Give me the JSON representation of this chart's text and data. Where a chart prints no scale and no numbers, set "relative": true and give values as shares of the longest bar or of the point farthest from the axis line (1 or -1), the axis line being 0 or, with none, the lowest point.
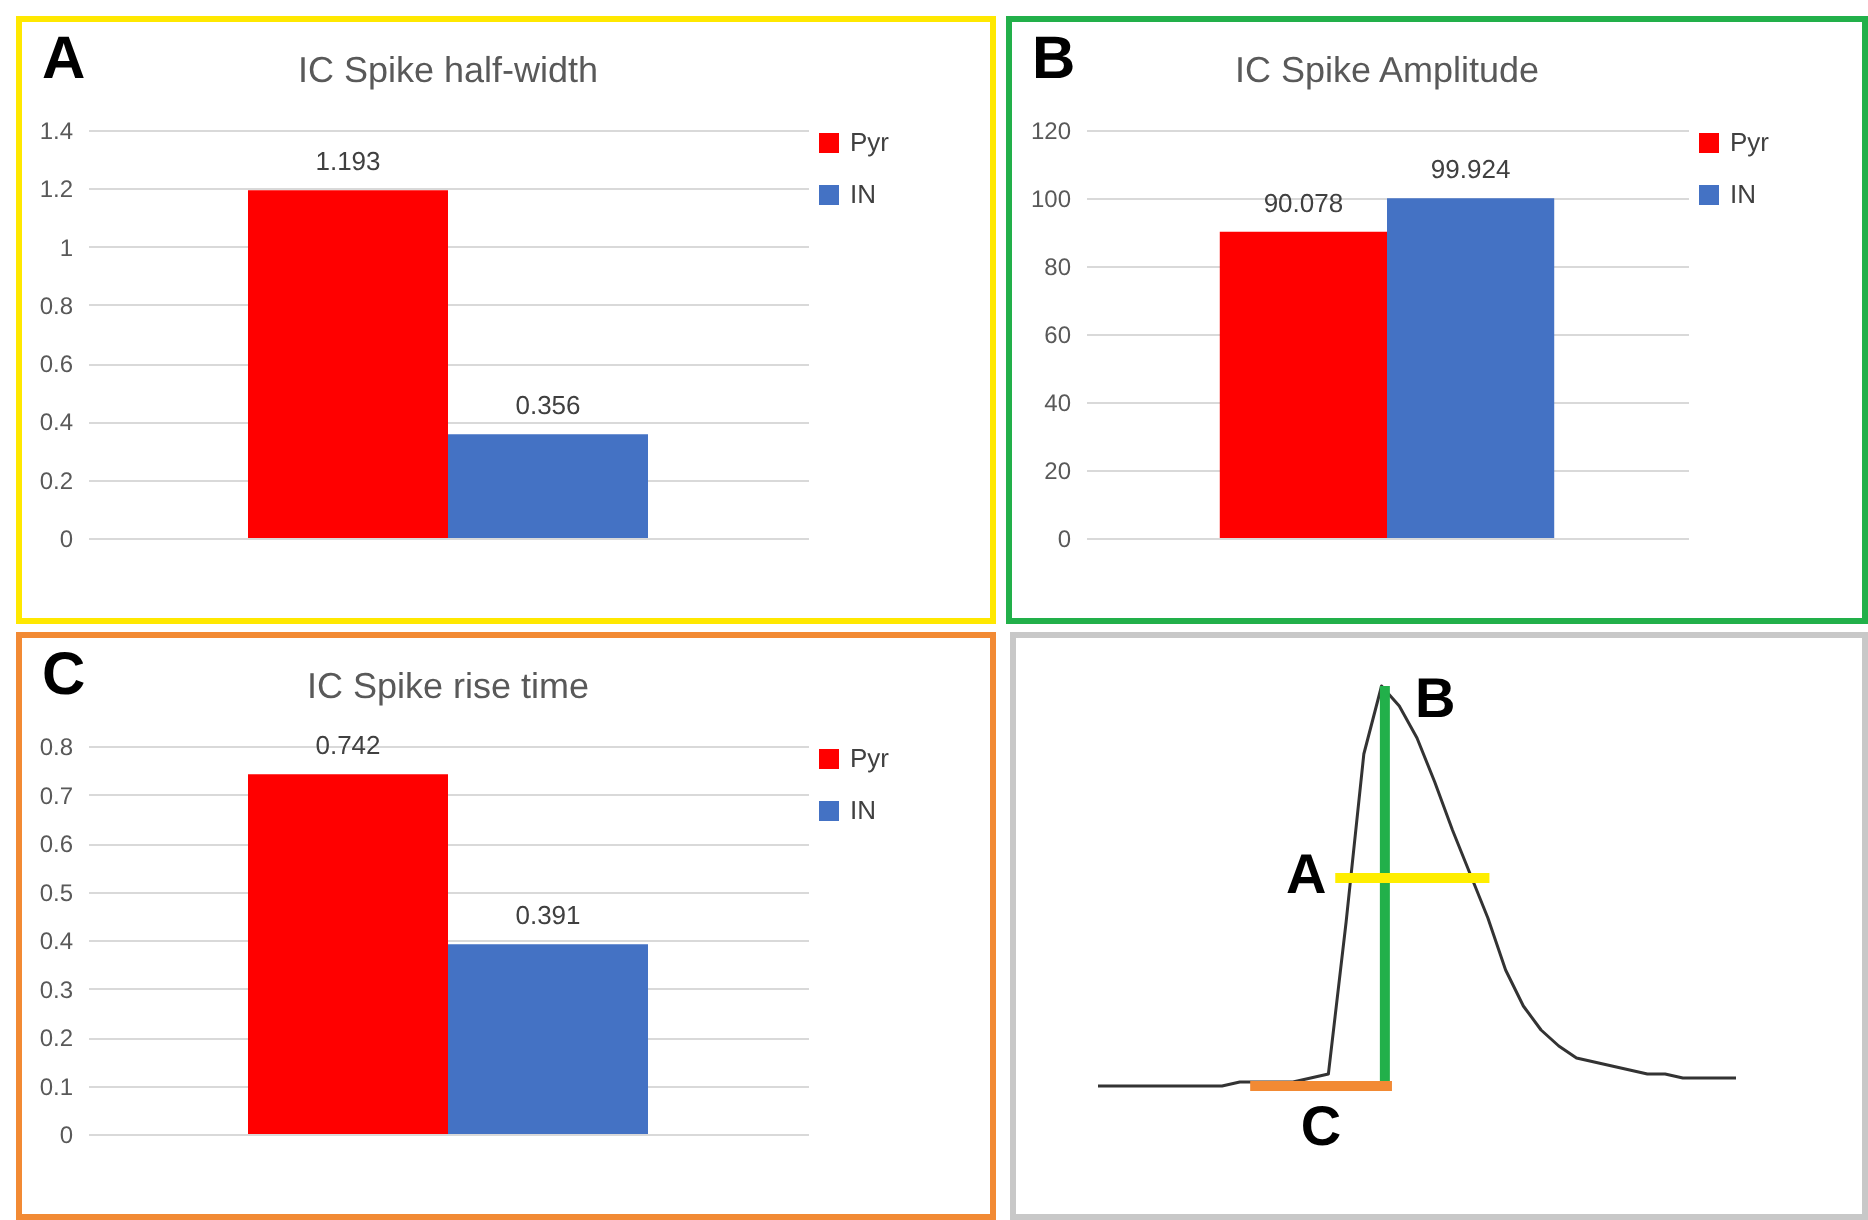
{
  "chart_data": [
    {
      "type": "bar",
      "title": "IC Spike half-width",
      "annotations": [
        "A"
      ],
      "categories": [
        null
      ],
      "series": [
        {
          "name": "Pyr",
          "color": "#ff0000",
          "values": [
            1.193
          ]
        },
        {
          "name": "IN",
          "color": "#4472c4",
          "values": [
            0.356
          ]
        }
      ],
      "ylim": [
        0,
        1.4
      ],
      "yticks": [
        0,
        0.2,
        0.4,
        0.6,
        0.8,
        1,
        1.2,
        1.4
      ],
      "grid": "y",
      "legend": "top right",
      "data_labels": true,
      "tick_labels": "y"
    },
    {
      "type": "bar",
      "title": "IC Spike Amplitude",
      "annotations": [
        "B"
      ],
      "categories": [
        null
      ],
      "series": [
        {
          "name": "Pyr",
          "color": "#ff0000",
          "values": [
            90.078
          ]
        },
        {
          "name": "IN",
          "color": "#4472c4",
          "values": [
            99.924
          ]
        }
      ],
      "ylim": [
        0,
        120
      ],
      "yticks": [
        0,
        20,
        40,
        60,
        80,
        100,
        120
      ],
      "grid": "y",
      "legend": "top right",
      "data_labels": true,
      "tick_labels": "y"
    },
    {
      "type": "bar",
      "title": "IC Spike rise time",
      "annotations": [
        "C"
      ],
      "categories": [
        null
      ],
      "series": [
        {
          "name": "Pyr",
          "color": "#ff0000",
          "values": [
            0.742
          ]
        },
        {
          "name": "IN",
          "color": "#4472c4",
          "values": [
            0.391
          ]
        }
      ],
      "ylim": [
        0,
        0.8
      ],
      "yticks": [
        0,
        0.1,
        0.2,
        0.3,
        0.4,
        0.5,
        0.6,
        0.7,
        0.8
      ],
      "grid": "y",
      "legend": "top right",
      "data_labels": true,
      "tick_labels": "y"
    },
    {
      "type": "line",
      "relative": true,
      "tick_labels": false,
      "categories": [
        null,
        null,
        null,
        null,
        null,
        null,
        null,
        null,
        null,
        null,
        null,
        null,
        null,
        null,
        null,
        null,
        null,
        null,
        null,
        null,
        null,
        null,
        null,
        null,
        null,
        null,
        null,
        null,
        null,
        null,
        null,
        null,
        null,
        null,
        null,
        null,
        null
      ],
      "series": [
        {
          "color": "#333333",
          "values": [
            0,
            0,
            0,
            0,
            0,
            0,
            0,
            0,
            0.01,
            0.01,
            0.01,
            0.01,
            0.02,
            0.03,
            0.41,
            0.83,
            1,
            0.95,
            0.87,
            0.76,
            0.64,
            0.53,
            0.42,
            0.29,
            0.2,
            0.14,
            0.1,
            0.07,
            0.06,
            0.05,
            0.04,
            0.03,
            0.03,
            0.02,
            0.02,
            0.02,
            0.02
          ]
        }
      ],
      "annotations": [
        "B",
        "A",
        "C"
      ]
    }
  ]
}
